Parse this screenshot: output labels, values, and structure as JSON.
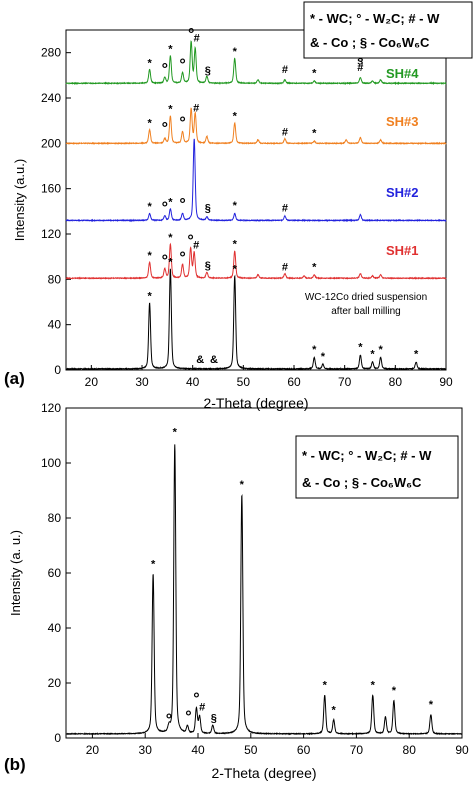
{
  "figure": {
    "panels": [
      {
        "id": "a",
        "panel_label": "(a)",
        "xlabel": "2-Theta (degree)",
        "ylabel": "Intensity (a.u.)",
        "legend_lines": [
          "* - WC; ° - W₂C; # - W",
          "& - Co ; § - Co₆W₆C"
        ]
      },
      {
        "id": "b",
        "panel_label": "(b)",
        "xlabel": "2-Theta (degree)",
        "ylabel": "Intensity (a. u.)",
        "legend_lines": [
          "* - WC; ° - W₂C; # - W",
          "& - Co ; § - Co₆W₆C"
        ]
      }
    ]
  },
  "chart_data": [
    {
      "type": "line",
      "panel": "a",
      "xlim": [
        15,
        90
      ],
      "ylim": [
        0,
        300
      ],
      "xticks": [
        20,
        30,
        40,
        50,
        60,
        70,
        80,
        90
      ],
      "yticks": [
        0,
        40,
        80,
        120,
        160,
        200,
        240,
        280
      ],
      "grid": false,
      "legend": "top-right",
      "series": [
        {
          "name": "WC-12Co dried suspension after ball milling",
          "label_lines": [
            "WC-12Co dried suspension",
            "after ball milling"
          ],
          "color": "#000000",
          "baseline": 1,
          "peaks": [
            [
              31.5,
              58
            ],
            [
              35.6,
              88
            ],
            [
              48.3,
              82
            ],
            [
              64.0,
              10
            ],
            [
              65.7,
              4
            ],
            [
              73.1,
              12
            ],
            [
              75.5,
              6
            ],
            [
              77.1,
              10
            ],
            [
              84.1,
              6
            ]
          ],
          "markers": [
            {
              "x": 31.5,
              "y": 62,
              "symbol": "*"
            },
            {
              "x": 35.6,
              "y": 92,
              "symbol": "*"
            },
            {
              "x": 41.5,
              "y": 6,
              "symbol": "&"
            },
            {
              "x": 44.2,
              "y": 6,
              "symbol": "&"
            },
            {
              "x": 48.3,
              "y": 86,
              "symbol": "*"
            },
            {
              "x": 64.0,
              "y": 15,
              "symbol": "*"
            },
            {
              "x": 65.7,
              "y": 9,
              "symbol": "*"
            },
            {
              "x": 73.1,
              "y": 17,
              "symbol": "*"
            },
            {
              "x": 75.5,
              "y": 11,
              "symbol": "*"
            },
            {
              "x": 77.1,
              "y": 15,
              "symbol": "*"
            },
            {
              "x": 84.1,
              "y": 11,
              "symbol": "*"
            }
          ]
        },
        {
          "name": "SH#1",
          "color": "#e03030",
          "baseline": 81,
          "peaks": [
            [
              31.5,
              14
            ],
            [
              34.5,
              8
            ],
            [
              35.6,
              30
            ],
            [
              38.0,
              12
            ],
            [
              39.6,
              26
            ],
            [
              40.3,
              22
            ],
            [
              42.8,
              5
            ],
            [
              48.3,
              24
            ],
            [
              52.9,
              3
            ],
            [
              58.2,
              4
            ],
            [
              62.0,
              2
            ],
            [
              64.0,
              3
            ],
            [
              73.1,
              4
            ],
            [
              75.5,
              2
            ],
            [
              77.1,
              3
            ]
          ],
          "markers": [
            {
              "x": 31.5,
              "y": 98,
              "symbol": "*"
            },
            {
              "x": 34.5,
              "y": 92,
              "symbol": "°"
            },
            {
              "x": 35.6,
              "y": 114,
              "symbol": "*"
            },
            {
              "x": 38.0,
              "y": 95,
              "symbol": "°"
            },
            {
              "x": 39.6,
              "y": 110,
              "symbol": "°"
            },
            {
              "x": 40.7,
              "y": 107,
              "symbol": "#"
            },
            {
              "x": 43.0,
              "y": 89,
              "symbol": "§"
            },
            {
              "x": 48.3,
              "y": 108,
              "symbol": "*"
            },
            {
              "x": 58.2,
              "y": 88,
              "symbol": "#"
            },
            {
              "x": 64.0,
              "y": 88,
              "symbol": "*"
            }
          ]
        },
        {
          "name": "SH#2",
          "color": "#2222dd",
          "baseline": 132,
          "peaks": [
            [
              31.5,
              6
            ],
            [
              34.5,
              4
            ],
            [
              35.6,
              10
            ],
            [
              38.0,
              6
            ],
            [
              40.3,
              72
            ],
            [
              42.8,
              3
            ],
            [
              48.3,
              6
            ],
            [
              58.2,
              4
            ],
            [
              73.1,
              5
            ]
          ],
          "markers": [
            {
              "x": 31.5,
              "y": 141,
              "symbol": "*"
            },
            {
              "x": 34.5,
              "y": 139,
              "symbol": "°"
            },
            {
              "x": 35.6,
              "y": 145,
              "symbol": "*"
            },
            {
              "x": 38.0,
              "y": 142,
              "symbol": "°"
            },
            {
              "x": 43.0,
              "y": 140,
              "symbol": "§"
            },
            {
              "x": 48.3,
              "y": 142,
              "symbol": "*"
            },
            {
              "x": 58.2,
              "y": 140,
              "symbol": "#"
            }
          ]
        },
        {
          "name": "SH#3",
          "color": "#f08020",
          "baseline": 200,
          "peaks": [
            [
              31.5,
              12
            ],
            [
              34.5,
              4
            ],
            [
              35.6,
              24
            ],
            [
              38.0,
              10
            ],
            [
              39.7,
              30
            ],
            [
              40.5,
              26
            ],
            [
              42.8,
              6
            ],
            [
              48.3,
              18
            ],
            [
              52.9,
              3
            ],
            [
              58.2,
              4
            ],
            [
              64.0,
              2
            ],
            [
              70.3,
              3
            ],
            [
              73.1,
              5
            ],
            [
              77.1,
              3
            ]
          ],
          "markers": [
            {
              "x": 31.5,
              "y": 215,
              "symbol": "*"
            },
            {
              "x": 34.5,
              "y": 209,
              "symbol": "°"
            },
            {
              "x": 35.6,
              "y": 227,
              "symbol": "*"
            },
            {
              "x": 38.0,
              "y": 214,
              "symbol": "°"
            },
            {
              "x": 40.7,
              "y": 228,
              "symbol": "#"
            },
            {
              "x": 48.3,
              "y": 221,
              "symbol": "*"
            },
            {
              "x": 58.2,
              "y": 207,
              "symbol": "#"
            },
            {
              "x": 64.0,
              "y": 206,
              "symbol": "*"
            }
          ]
        },
        {
          "name": "SH#4",
          "color": "#229922",
          "baseline": 253,
          "peaks": [
            [
              31.5,
              12
            ],
            [
              34.5,
              5
            ],
            [
              35.6,
              24
            ],
            [
              38.0,
              9
            ],
            [
              39.7,
              36
            ],
            [
              40.5,
              30
            ],
            [
              42.8,
              6
            ],
            [
              48.3,
              22
            ],
            [
              52.9,
              3
            ],
            [
              58.2,
              3
            ],
            [
              64.0,
              2
            ],
            [
              73.1,
              5
            ],
            [
              75.5,
              2
            ],
            [
              77.1,
              3
            ]
          ],
          "markers": [
            {
              "x": 31.5,
              "y": 268,
              "symbol": "*"
            },
            {
              "x": 34.5,
              "y": 261,
              "symbol": "°"
            },
            {
              "x": 35.6,
              "y": 280,
              "symbol": "*"
            },
            {
              "x": 38.0,
              "y": 265,
              "symbol": "°"
            },
            {
              "x": 39.7,
              "y": 292,
              "symbol": "°"
            },
            {
              "x": 40.8,
              "y": 290,
              "symbol": "#"
            },
            {
              "x": 43.0,
              "y": 261,
              "symbol": "§"
            },
            {
              "x": 48.3,
              "y": 278,
              "symbol": "*"
            },
            {
              "x": 58.2,
              "y": 262,
              "symbol": "#"
            },
            {
              "x": 64.0,
              "y": 259,
              "symbol": "*"
            },
            {
              "x": 73.1,
              "y": 264,
              "symbol": "#"
            },
            {
              "x": 73.1,
              "y": 271,
              "symbol": "§"
            }
          ]
        }
      ]
    },
    {
      "type": "line",
      "panel": "b",
      "xlim": [
        15,
        90
      ],
      "ylim": [
        0,
        120
      ],
      "xticks": [
        20,
        30,
        40,
        50,
        60,
        70,
        80,
        90
      ],
      "yticks": [
        0,
        20,
        40,
        60,
        80,
        100,
        120
      ],
      "grid": false,
      "legend": "top-right",
      "series": [
        {
          "color": "#000000",
          "baseline": 1.5,
          "peaks": [
            [
              31.5,
              58
            ],
            [
              34.5,
              2
            ],
            [
              35.6,
              105
            ],
            [
              38.0,
              2.5
            ],
            [
              39.7,
              9
            ],
            [
              40.3,
              6
            ],
            [
              42.8,
              3
            ],
            [
              48.3,
              87
            ],
            [
              64.0,
              14
            ],
            [
              65.7,
              5
            ],
            [
              73.1,
              14
            ],
            [
              75.5,
              6
            ],
            [
              77.1,
              12
            ],
            [
              84.1,
              7
            ]
          ],
          "markers": [
            {
              "x": 31.5,
              "y": 62,
              "symbol": "*"
            },
            {
              "x": 34.5,
              "y": 5,
              "symbol": "°"
            },
            {
              "x": 35.6,
              "y": 110,
              "symbol": "*"
            },
            {
              "x": 38.2,
              "y": 6,
              "symbol": "°"
            },
            {
              "x": 39.7,
              "y": 12.5,
              "symbol": "°"
            },
            {
              "x": 40.8,
              "y": 10,
              "symbol": "#"
            },
            {
              "x": 43.0,
              "y": 6,
              "symbol": "§"
            },
            {
              "x": 48.3,
              "y": 91,
              "symbol": "*"
            },
            {
              "x": 64.0,
              "y": 18,
              "symbol": "*"
            },
            {
              "x": 65.7,
              "y": 9,
              "symbol": "*"
            },
            {
              "x": 73.1,
              "y": 18,
              "symbol": "*"
            },
            {
              "x": 77.1,
              "y": 16,
              "symbol": "*"
            },
            {
              "x": 84.1,
              "y": 11,
              "symbol": "*"
            }
          ]
        }
      ]
    }
  ]
}
